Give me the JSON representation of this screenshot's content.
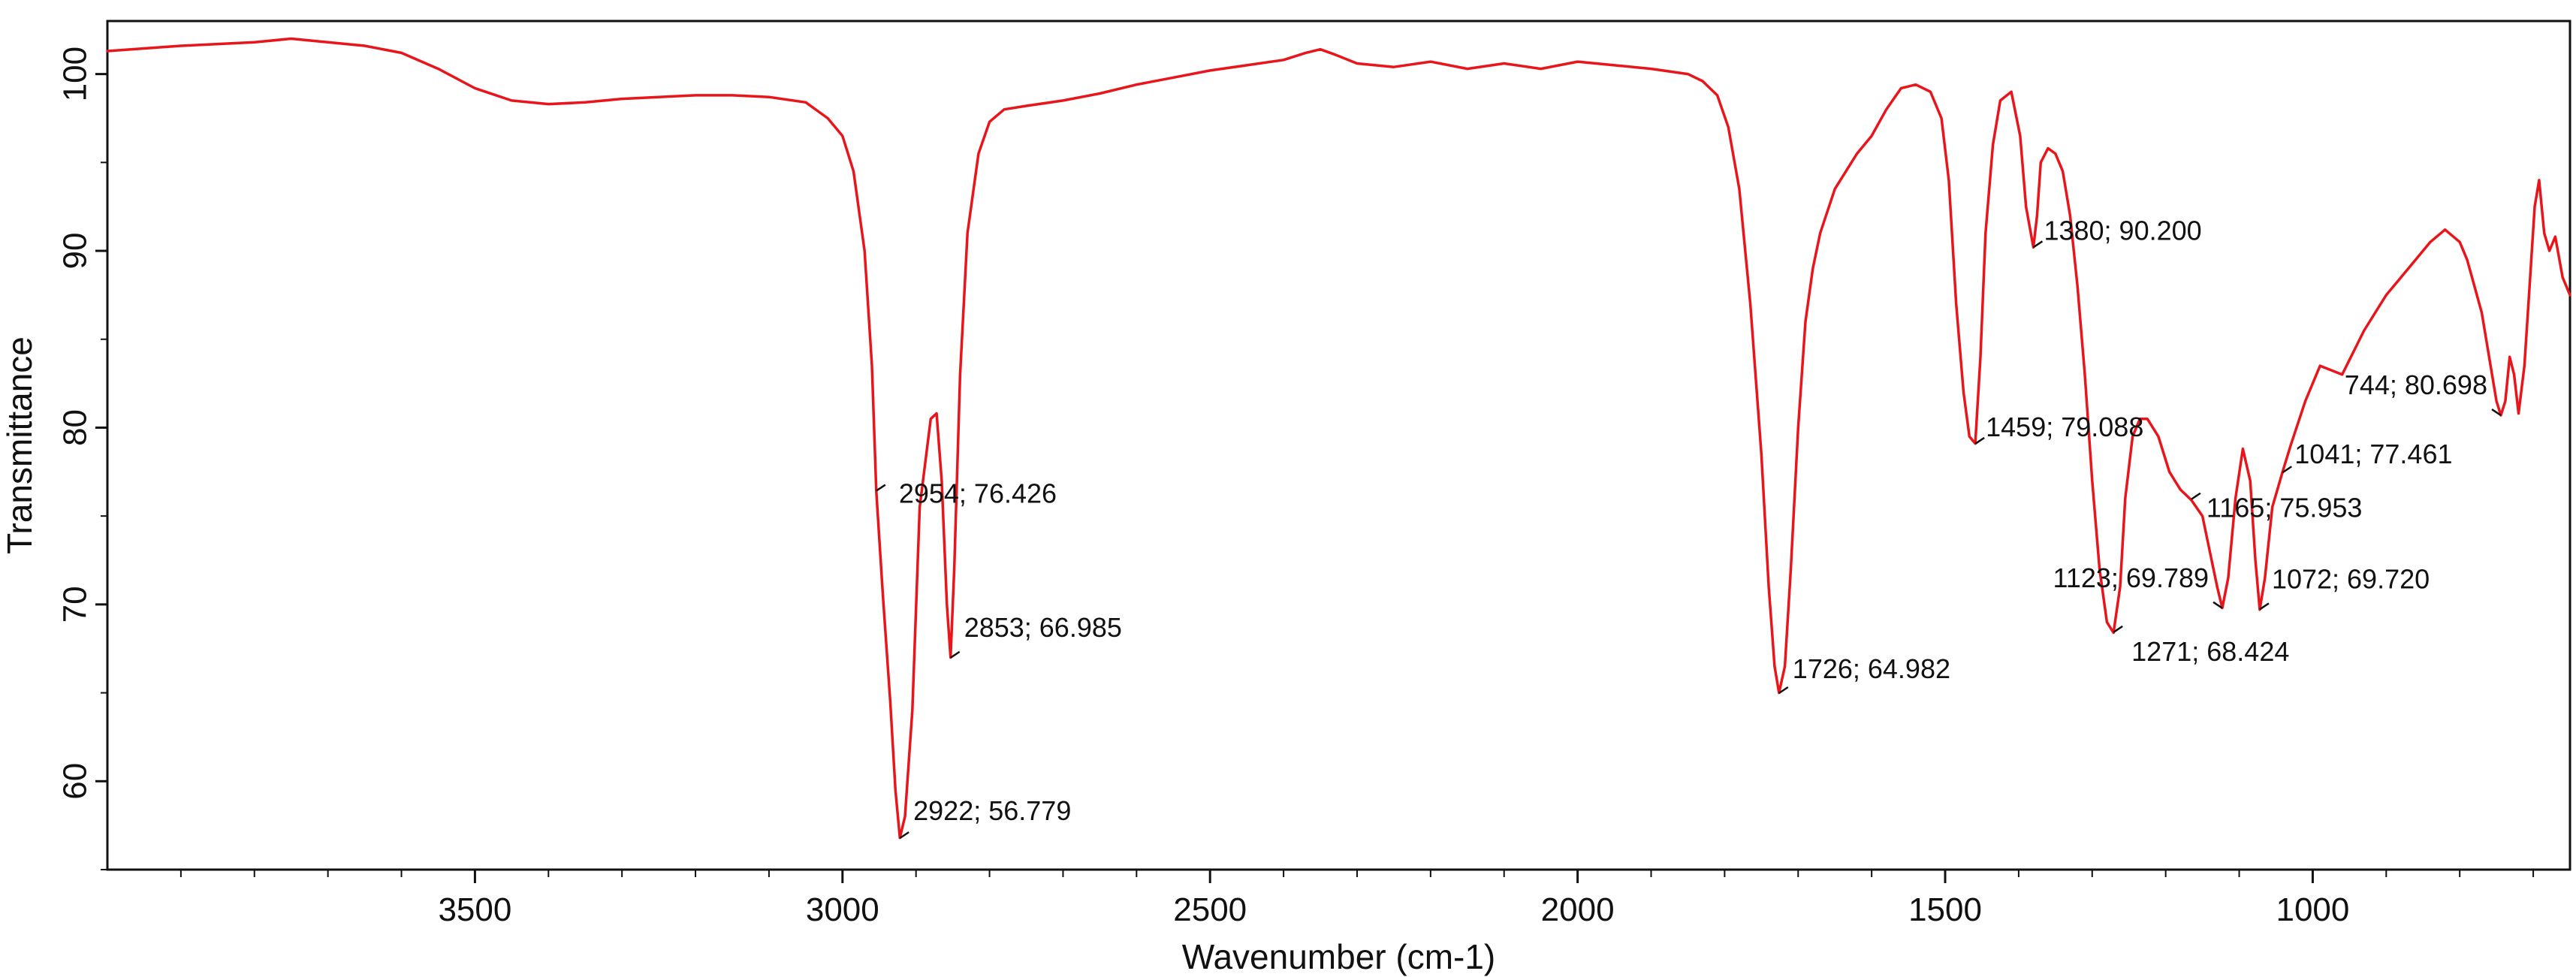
{
  "chart_data": {
    "type": "line",
    "title": "",
    "xlabel": "Wavenumber (cm-1)",
    "ylabel": "Transmittance",
    "xlim": [
      4000,
      650
    ],
    "ylim": [
      55,
      103
    ],
    "x_reversed": true,
    "grid": false,
    "line_color": "#e8151b",
    "x_ticks": [
      3500,
      3000,
      2500,
      2000,
      1500,
      1000
    ],
    "x_tick_labels": [
      "3500",
      "3000",
      "2500",
      "2000",
      "1500",
      "1000"
    ],
    "y_ticks": [
      60,
      70,
      80,
      90,
      100
    ],
    "y_tick_labels": [
      "60",
      "70",
      "80",
      "90",
      "100"
    ],
    "series": [
      {
        "x": [
          4000,
          3900,
          3800,
          3750,
          3700,
          3650,
          3600,
          3550,
          3500,
          3450,
          3400,
          3350,
          3300,
          3250,
          3200,
          3150,
          3100,
          3050,
          3020,
          3000,
          2985,
          2970,
          2960,
          2954,
          2945,
          2935,
          2928,
          2922,
          2915,
          2905,
          2895,
          2880,
          2872,
          2865,
          2858,
          2853,
          2848,
          2840,
          2830,
          2815,
          2800,
          2780,
          2750,
          2700,
          2650,
          2600,
          2550,
          2500,
          2450,
          2400,
          2370,
          2350,
          2330,
          2300,
          2250,
          2200,
          2150,
          2100,
          2050,
          2000,
          1950,
          1900,
          1850,
          1830,
          1810,
          1795,
          1780,
          1765,
          1750,
          1740,
          1732,
          1726,
          1718,
          1710,
          1700,
          1690,
          1680,
          1670,
          1650,
          1620,
          1600,
          1580,
          1560,
          1540,
          1520,
          1505,
          1495,
          1485,
          1475,
          1467,
          1459,
          1452,
          1445,
          1435,
          1425,
          1410,
          1398,
          1390,
          1380,
          1375,
          1370,
          1360,
          1350,
          1340,
          1330,
          1320,
          1310,
          1300,
          1290,
          1280,
          1271,
          1262,
          1255,
          1245,
          1235,
          1225,
          1210,
          1195,
          1180,
          1165,
          1150,
          1140,
          1130,
          1123,
          1115,
          1105,
          1095,
          1085,
          1078,
          1072,
          1065,
          1055,
          1041,
          1030,
          1010,
          990,
          960,
          930,
          900,
          870,
          840,
          820,
          800,
          790,
          780,
          770,
          760,
          750,
          744,
          738,
          732,
          726,
          720,
          712,
          705,
          698,
          692,
          685,
          678,
          670,
          660,
          650
        ],
        "y": [
          101.3,
          101.6,
          101.8,
          102.0,
          101.8,
          101.6,
          101.2,
          100.3,
          99.2,
          98.5,
          98.3,
          98.4,
          98.6,
          98.7,
          98.8,
          98.8,
          98.7,
          98.4,
          97.5,
          96.5,
          94.5,
          90.0,
          83.5,
          76.4,
          70.5,
          64.5,
          59.5,
          56.8,
          58.0,
          64.0,
          75.5,
          80.5,
          80.8,
          77.0,
          70.0,
          67.0,
          72.0,
          83.0,
          91.0,
          95.5,
          97.3,
          98.0,
          98.2,
          98.5,
          98.9,
          99.4,
          99.8,
          100.2,
          100.5,
          100.8,
          101.2,
          101.4,
          101.1,
          100.6,
          100.4,
          100.7,
          100.3,
          100.6,
          100.3,
          100.7,
          100.5,
          100.3,
          100.0,
          99.6,
          98.8,
          97.0,
          93.5,
          87.0,
          78.5,
          71.0,
          66.5,
          65.0,
          66.5,
          72.0,
          80.0,
          86.0,
          89.0,
          91.0,
          93.5,
          95.5,
          96.5,
          98.0,
          99.2,
          99.4,
          99.0,
          97.5,
          94.0,
          87.0,
          82.0,
          79.5,
          79.1,
          84.0,
          91.0,
          96.0,
          98.5,
          99.0,
          96.5,
          92.5,
          90.2,
          92.0,
          95.0,
          95.8,
          95.5,
          94.5,
          92.0,
          88.0,
          83.0,
          77.0,
          72.0,
          69.0,
          68.4,
          71.0,
          76.0,
          79.5,
          80.5,
          80.5,
          79.5,
          77.5,
          76.5,
          75.9,
          75.0,
          73.0,
          71.0,
          69.8,
          71.5,
          76.0,
          78.8,
          77.0,
          72.5,
          69.7,
          71.5,
          75.5,
          77.5,
          79.0,
          81.5,
          83.5,
          83.0,
          85.5,
          87.5,
          89.0,
          90.5,
          91.2,
          90.5,
          89.5,
          88.0,
          86.5,
          84.0,
          81.5,
          80.7,
          81.5,
          84.0,
          83.0,
          80.8,
          83.5,
          88.0,
          92.5,
          94.0,
          91.0,
          90.0,
          90.8,
          88.5,
          87.5
        ]
      }
    ],
    "annotations": [
      {
        "x": 2954,
        "y": 76.426,
        "text": "2954; 76.426"
      },
      {
        "x": 2853,
        "y": 66.985,
        "text": "2853; 66.985"
      },
      {
        "x": 2922,
        "y": 56.779,
        "text": "2922; 56.779"
      },
      {
        "x": 1726,
        "y": 64.982,
        "text": "1726; 64.982"
      },
      {
        "x": 1380,
        "y": 90.2,
        "text": "1380; 90.200"
      },
      {
        "x": 1459,
        "y": 79.088,
        "text": "1459; 79.088"
      },
      {
        "x": 1165,
        "y": 75.953,
        "text": "1165; 75.953"
      },
      {
        "x": 1123,
        "y": 69.789,
        "text": "1123; 69.789"
      },
      {
        "x": 1271,
        "y": 68.424,
        "text": "1271; 68.424"
      },
      {
        "x": 1072,
        "y": 69.72,
        "text": "1072; 69.720"
      },
      {
        "x": 1041,
        "y": 77.461,
        "text": "1041; 77.461"
      },
      {
        "x": 744,
        "y": 80.698,
        "text": "744; 80.698"
      }
    ]
  }
}
